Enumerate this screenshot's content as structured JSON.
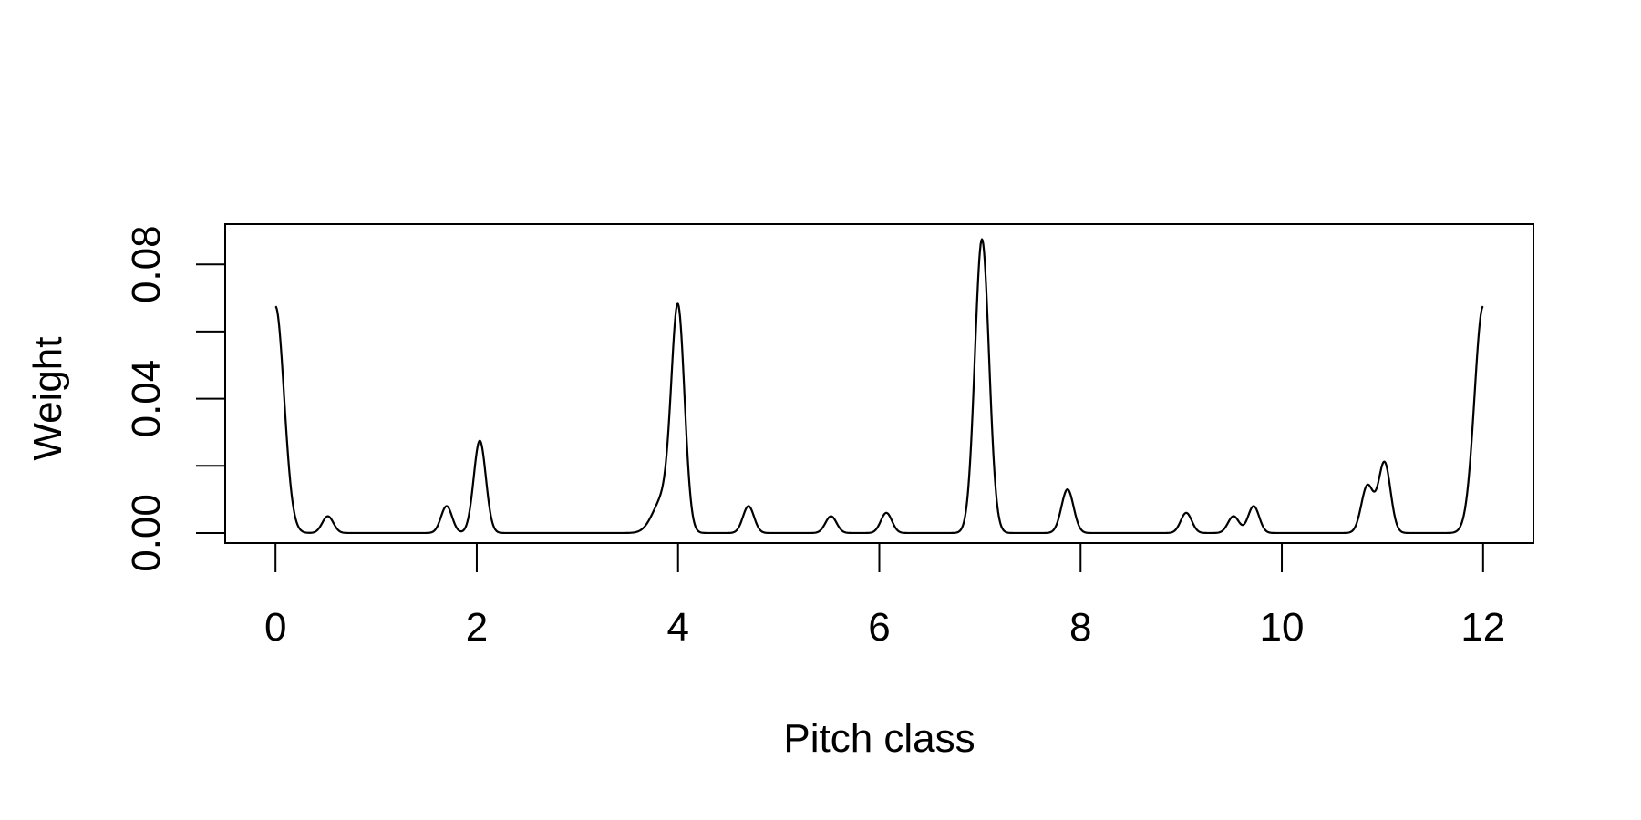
{
  "chart_data": {
    "type": "line",
    "title": "",
    "xlabel": "Pitch class",
    "ylabel": "Weight",
    "xlim": [
      -0.5,
      12.5
    ],
    "ylim": [
      -0.003,
      0.092
    ],
    "x_ticks": [
      0,
      2,
      4,
      6,
      8,
      10,
      12
    ],
    "x_tick_labels": [
      "0",
      "2",
      "4",
      "6",
      "8",
      "10",
      "12"
    ],
    "y_ticks": [
      0,
      0.02,
      0.04,
      0.06,
      0.08
    ],
    "y_tick_labels": [
      "0.00",
      "",
      "0.04",
      "",
      "0.08"
    ],
    "grid": false,
    "legend": "none",
    "line_color": "#000000",
    "peaks": [
      {
        "x": 0.0,
        "y": 0.0675,
        "width": 0.085
      },
      {
        "x": 0.52,
        "y": 0.005,
        "width": 0.055
      },
      {
        "x": 1.7,
        "y": 0.008,
        "width": 0.055
      },
      {
        "x": 2.03,
        "y": 0.0275,
        "width": 0.06
      },
      {
        "x": 3.85,
        "y": 0.01,
        "width": 0.1
      },
      {
        "x": 4.0,
        "y": 0.065,
        "width": 0.065
      },
      {
        "x": 4.7,
        "y": 0.008,
        "width": 0.055
      },
      {
        "x": 5.52,
        "y": 0.005,
        "width": 0.055
      },
      {
        "x": 6.07,
        "y": 0.006,
        "width": 0.055
      },
      {
        "x": 7.02,
        "y": 0.0875,
        "width": 0.07
      },
      {
        "x": 7.87,
        "y": 0.013,
        "width": 0.06
      },
      {
        "x": 9.05,
        "y": 0.006,
        "width": 0.055
      },
      {
        "x": 9.52,
        "y": 0.005,
        "width": 0.055
      },
      {
        "x": 9.72,
        "y": 0.008,
        "width": 0.055
      },
      {
        "x": 10.85,
        "y": 0.014,
        "width": 0.06
      },
      {
        "x": 11.02,
        "y": 0.021,
        "width": 0.06
      },
      {
        "x": 12.0,
        "y": 0.0675,
        "width": 0.085
      }
    ]
  }
}
